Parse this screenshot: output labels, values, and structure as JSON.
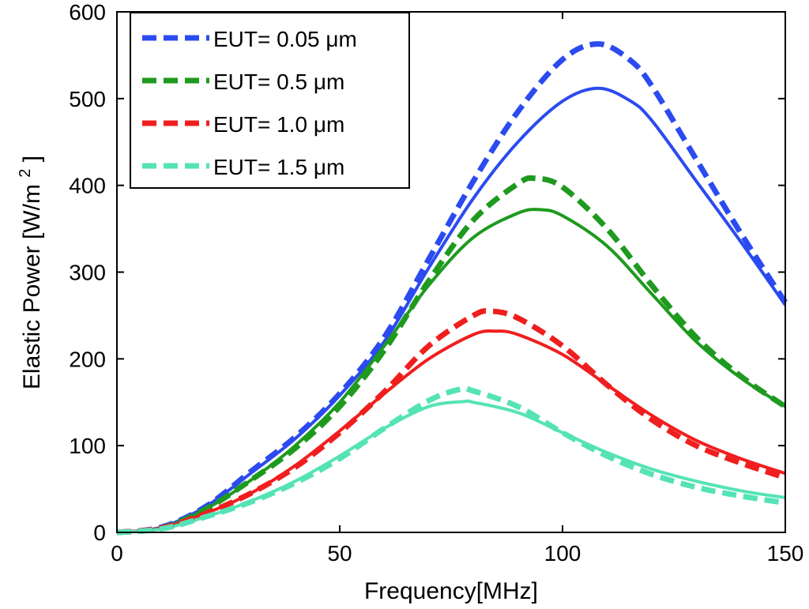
{
  "chart_data": {
    "type": "line",
    "xlabel": "Frequency[MHz]",
    "ylabel": "Elastic Power [W/m",
    "ylabel_sup": "2",
    "ylabel_close": "]",
    "xlim": [
      0,
      150
    ],
    "ylim": [
      0,
      600
    ],
    "xticks": [
      0,
      50,
      100,
      150
    ],
    "yticks": [
      0,
      100,
      200,
      300,
      400,
      500,
      600
    ],
    "grid": false,
    "legend_position": "top-left",
    "series": [
      {
        "name": "EUT= 0.05  μm",
        "color": "#2b4bf0",
        "style": "dashed",
        "x": [
          0,
          10,
          20,
          30,
          40,
          50,
          60,
          70,
          80,
          90,
          100,
          108,
          115,
          120,
          130,
          140,
          150
        ],
        "y": [
          0,
          6,
          30,
          70,
          110,
          160,
          225,
          315,
          405,
          485,
          545,
          563,
          545,
          515,
          430,
          345,
          265
        ]
      },
      {
        "name": "",
        "color": "#2b4bf0",
        "style": "solid",
        "x": [
          0,
          10,
          20,
          30,
          40,
          50,
          60,
          70,
          80,
          90,
          100,
          108,
          115,
          120,
          130,
          140,
          150
        ],
        "y": [
          0,
          6,
          30,
          68,
          108,
          158,
          220,
          305,
          385,
          450,
          497,
          512,
          498,
          475,
          405,
          335,
          262
        ]
      },
      {
        "name": "EUT= 0.5  μm",
        "color": "#1e9a1e",
        "style": "dashed",
        "x": [
          0,
          10,
          20,
          30,
          40,
          50,
          60,
          70,
          80,
          90,
          94,
          100,
          110,
          120,
          130,
          140,
          150
        ],
        "y": [
          0,
          5,
          27,
          60,
          97,
          145,
          210,
          290,
          360,
          402,
          408,
          398,
          350,
          285,
          225,
          180,
          145
        ]
      },
      {
        "name": "",
        "color": "#1e9a1e",
        "style": "solid",
        "x": [
          0,
          10,
          20,
          30,
          40,
          50,
          60,
          70,
          80,
          90,
          95,
          100,
          110,
          120,
          130,
          140,
          150
        ],
        "y": [
          0,
          5,
          27,
          60,
          100,
          150,
          215,
          285,
          340,
          368,
          372,
          365,
          330,
          275,
          220,
          178,
          145
        ]
      },
      {
        "name": "EUT= 1.0  μm",
        "color": "#f01e1e",
        "style": "dashed",
        "x": [
          0,
          10,
          20,
          30,
          40,
          50,
          60,
          70,
          80,
          84,
          90,
          100,
          110,
          120,
          130,
          140,
          150
        ],
        "y": [
          0,
          5,
          22,
          45,
          75,
          115,
          162,
          215,
          250,
          255,
          247,
          215,
          170,
          130,
          100,
          80,
          63
        ]
      },
      {
        "name": "",
        "color": "#f01e1e",
        "style": "solid",
        "x": [
          0,
          10,
          20,
          30,
          40,
          50,
          60,
          70,
          80,
          85,
          90,
          100,
          110,
          120,
          130,
          140,
          150
        ],
        "y": [
          0,
          5,
          22,
          45,
          77,
          117,
          160,
          200,
          228,
          232,
          228,
          205,
          170,
          135,
          106,
          85,
          68
        ]
      },
      {
        "name": "EUT= 1.5  μm",
        "color": "#55e3b6",
        "style": "dashed",
        "x": [
          0,
          10,
          20,
          30,
          40,
          50,
          60,
          70,
          77,
          80,
          90,
          100,
          110,
          120,
          130,
          140,
          150
        ],
        "y": [
          0,
          4,
          18,
          35,
          57,
          85,
          120,
          152,
          165,
          163,
          145,
          115,
          88,
          67,
          52,
          42,
          34
        ]
      },
      {
        "name": "",
        "color": "#55e3b6",
        "style": "solid",
        "x": [
          0,
          10,
          20,
          30,
          40,
          50,
          60,
          70,
          78,
          80,
          90,
          100,
          110,
          120,
          130,
          140,
          150
        ],
        "y": [
          0,
          4,
          18,
          36,
          59,
          88,
          120,
          145,
          151,
          150,
          138,
          115,
          92,
          73,
          59,
          48,
          40
        ]
      }
    ]
  }
}
